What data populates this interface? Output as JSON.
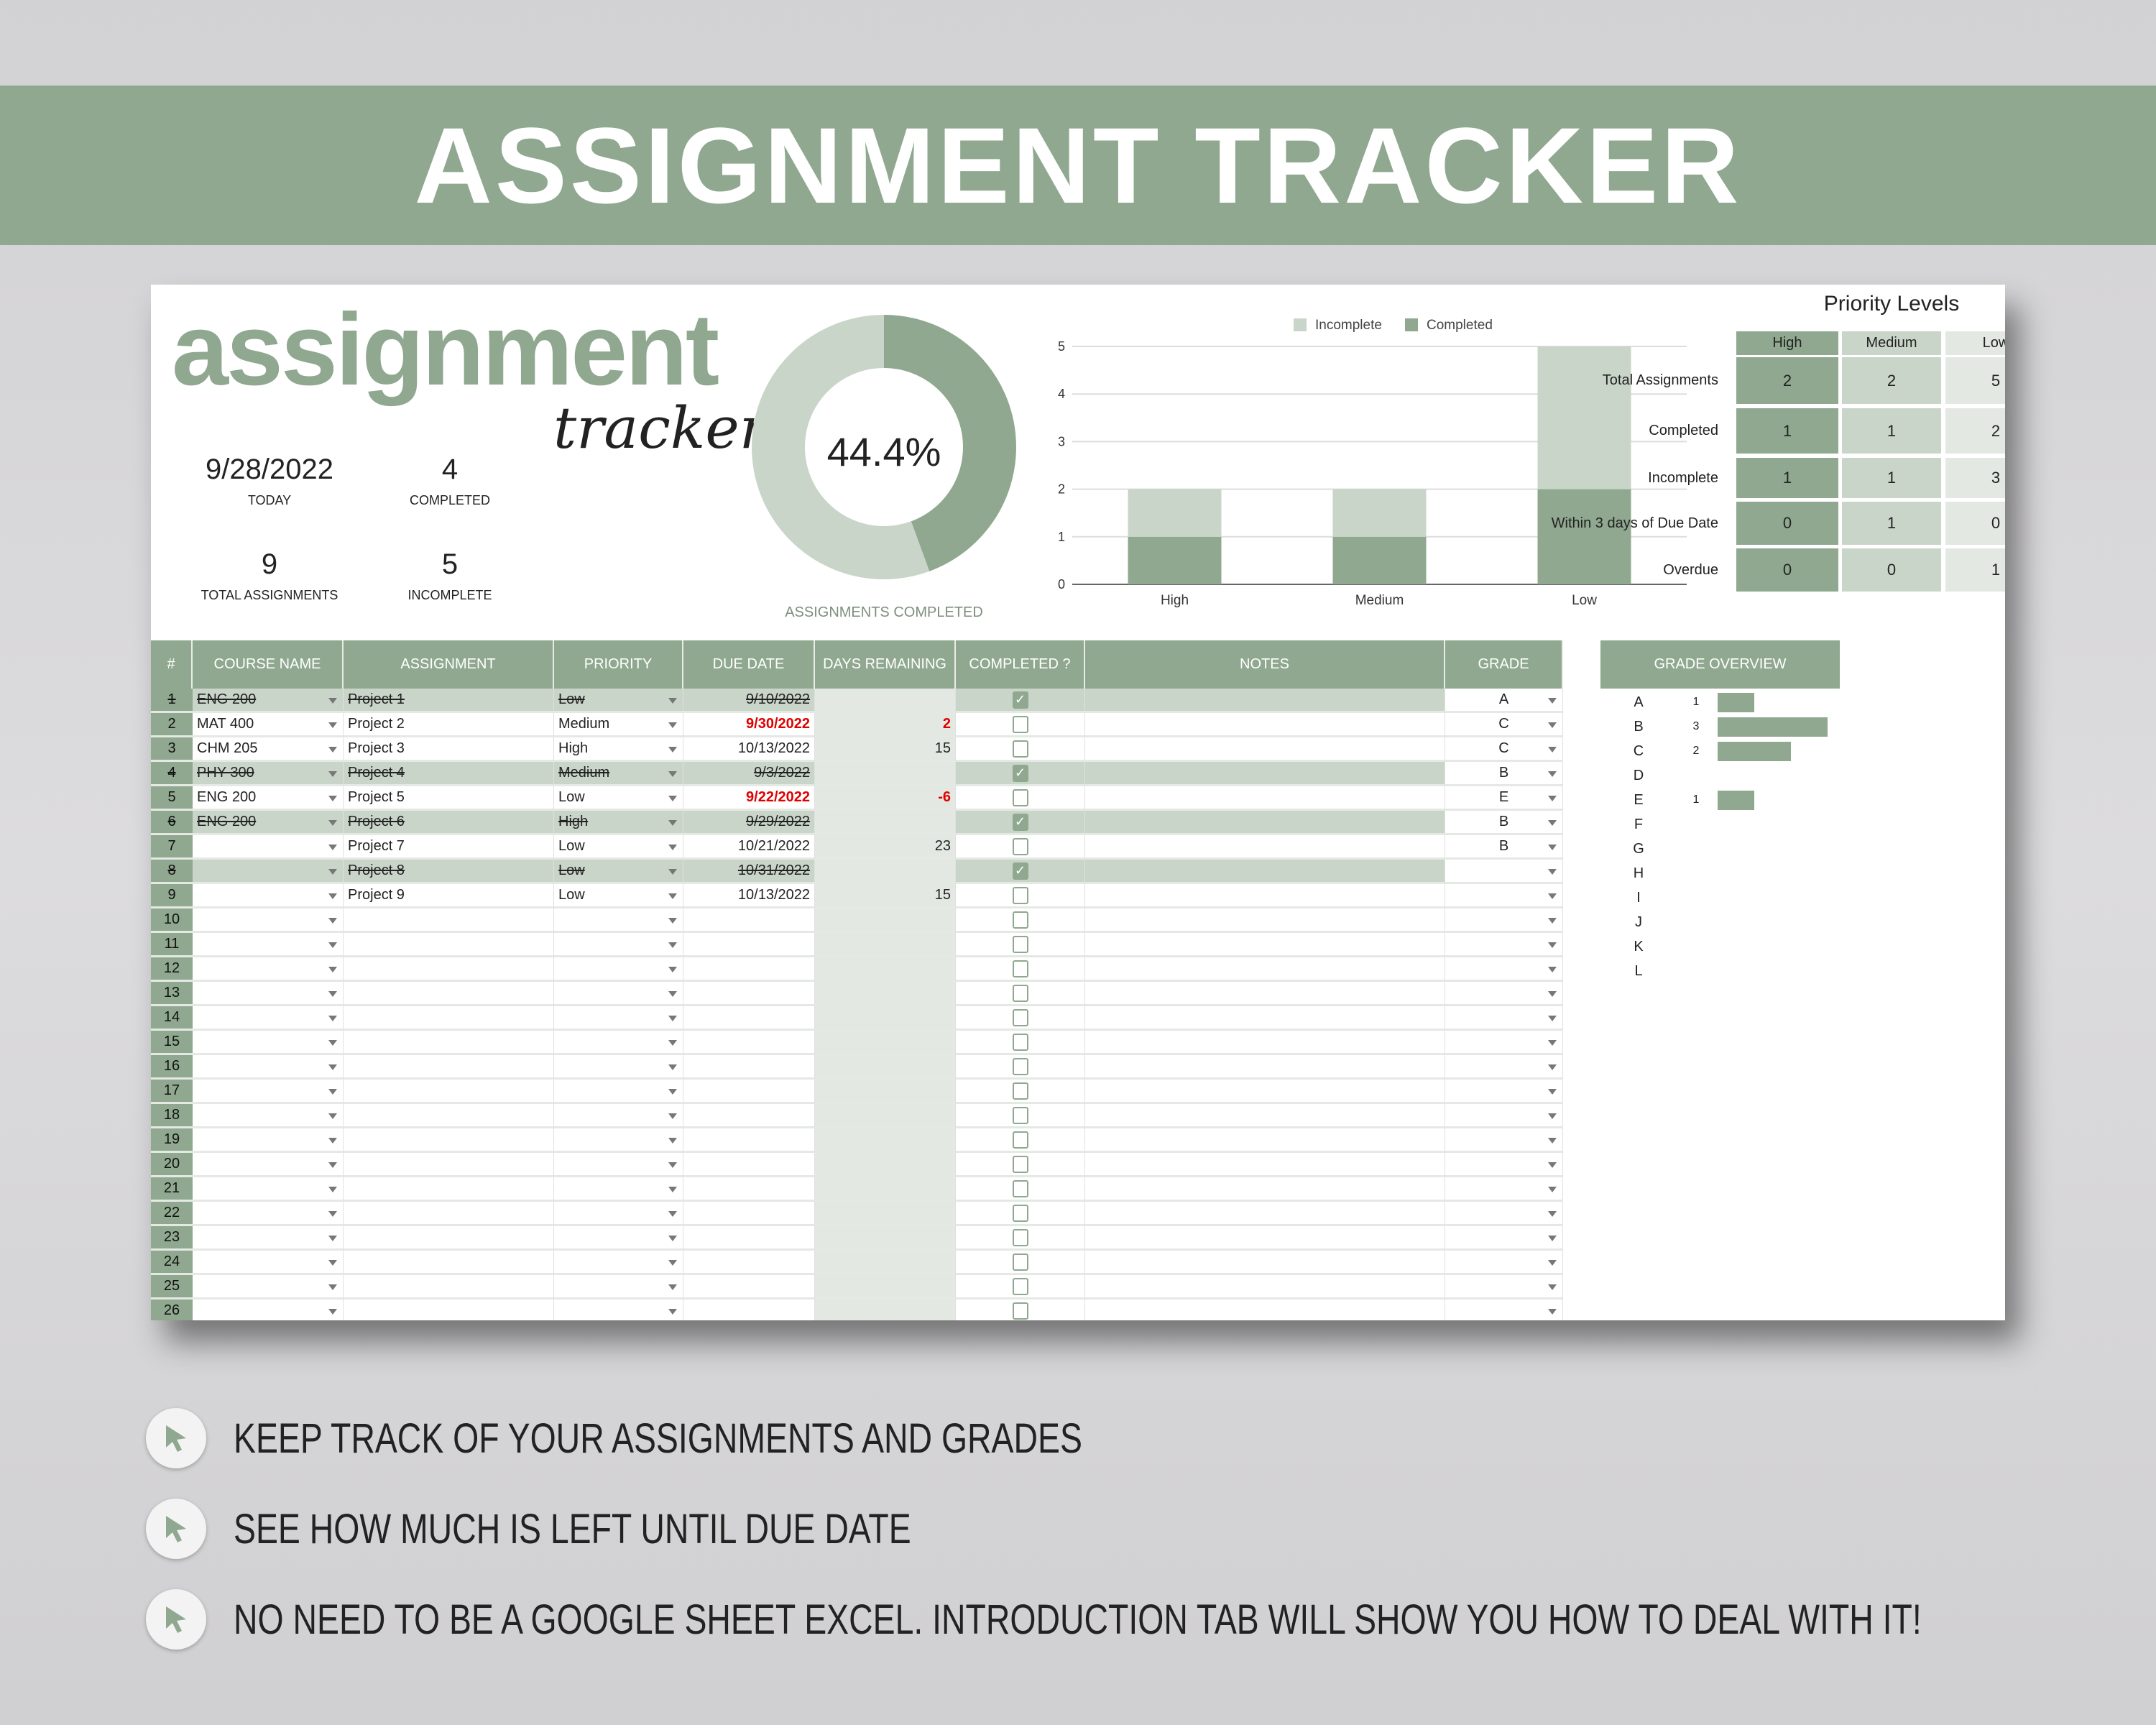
{
  "banner": {
    "title": "ASSIGNMENT TRACKER"
  },
  "logo": {
    "main": "assignment",
    "script": "tracker"
  },
  "stats": {
    "today": {
      "value": "9/28/2022",
      "label": "TODAY"
    },
    "completed": {
      "value": "4",
      "label": "COMPLETED"
    },
    "total": {
      "value": "9",
      "label": "TOTAL ASSIGNMENTS"
    },
    "incomplete": {
      "value": "5",
      "label": "INCOMPLETE"
    }
  },
  "colors": {
    "accent": "#8fa88f",
    "light": "#c9d5c9",
    "lighter": "#e3e8e3",
    "overdue": "#e00000"
  },
  "chart_data": [
    {
      "type": "pie",
      "variant": "donut",
      "center_label": "44.4%",
      "caption": "ASSIGNMENTS COMPLETED",
      "slices": [
        {
          "name": "Completed",
          "value": 44.4,
          "color": "#8fa88f"
        },
        {
          "name": "Incomplete",
          "value": 55.6,
          "color": "#c9d5c9"
        }
      ]
    },
    {
      "type": "bar",
      "stacked": true,
      "categories": [
        "High",
        "Medium",
        "Low"
      ],
      "ylim": [
        0,
        5
      ],
      "yticks": [
        "0",
        "1",
        "2",
        "3",
        "4",
        "5"
      ],
      "grid": true,
      "legend": "top",
      "series": [
        {
          "name": "Incomplete",
          "values": [
            1,
            1,
            3
          ],
          "color": "#c9d5c9"
        },
        {
          "name": "Completed",
          "values": [
            1,
            1,
            2
          ],
          "color": "#8fa88f"
        }
      ]
    }
  ],
  "priority": {
    "title": "Priority Levels",
    "columns": [
      "High",
      "Medium",
      "Low"
    ],
    "rows": [
      {
        "label": "Total Assignments",
        "values": [
          "2",
          "2",
          "5"
        ]
      },
      {
        "label": "Completed",
        "values": [
          "1",
          "1",
          "2"
        ]
      },
      {
        "label": "Incomplete",
        "values": [
          "1",
          "1",
          "3"
        ]
      },
      {
        "label": "Within 3 days of Due Date",
        "values": [
          "0",
          "1",
          "0"
        ]
      },
      {
        "label": "Overdue",
        "values": [
          "0",
          "0",
          "1"
        ]
      }
    ]
  },
  "table": {
    "headers": [
      "#",
      "COURSE NAME",
      "ASSIGNMENT",
      "PRIORITY",
      "DUE DATE",
      "DAYS REMAINING",
      "COMPLETED ?",
      "NOTES",
      "GRADE"
    ],
    "rows": [
      {
        "n": "1",
        "course": "ENG 200",
        "assignment": "Project 1",
        "priority": "Low",
        "due": "9/10/2022",
        "days": "",
        "completed": true,
        "notes": "",
        "grade": "A",
        "urgent": false
      },
      {
        "n": "2",
        "course": "MAT 400",
        "assignment": "Project 2",
        "priority": "Medium",
        "due": "9/30/2022",
        "days": "2",
        "completed": false,
        "notes": "",
        "grade": "C",
        "urgent": true
      },
      {
        "n": "3",
        "course": "CHM 205",
        "assignment": "Project 3",
        "priority": "High",
        "due": "10/13/2022",
        "days": "15",
        "completed": false,
        "notes": "",
        "grade": "C",
        "urgent": false
      },
      {
        "n": "4",
        "course": "PHY 300",
        "assignment": "Project 4",
        "priority": "Medium",
        "due": "9/3/2022",
        "days": "",
        "completed": true,
        "notes": "",
        "grade": "B",
        "urgent": false
      },
      {
        "n": "5",
        "course": "ENG 200",
        "assignment": "Project 5",
        "priority": "Low",
        "due": "9/22/2022",
        "days": "-6",
        "completed": false,
        "notes": "",
        "grade": "E",
        "urgent": true
      },
      {
        "n": "6",
        "course": "ENG 200",
        "assignment": "Project 6",
        "priority": "High",
        "due": "9/29/2022",
        "days": "",
        "completed": true,
        "notes": "",
        "grade": "B",
        "urgent": false
      },
      {
        "n": "7",
        "course": "",
        "assignment": "Project 7",
        "priority": "Low",
        "due": "10/21/2022",
        "days": "23",
        "completed": false,
        "notes": "",
        "grade": "B",
        "urgent": false
      },
      {
        "n": "8",
        "course": "",
        "assignment": "Project 8",
        "priority": "Low",
        "due": "10/31/2022",
        "days": "",
        "completed": true,
        "notes": "",
        "grade": "",
        "urgent": false
      },
      {
        "n": "9",
        "course": "",
        "assignment": "Project 9",
        "priority": "Low",
        "due": "10/13/2022",
        "days": "15",
        "completed": false,
        "notes": "",
        "grade": "",
        "urgent": false
      }
    ],
    "empty_row_numbers": [
      "10",
      "11",
      "12",
      "13",
      "14",
      "15",
      "16",
      "17",
      "18",
      "19",
      "20",
      "21",
      "22",
      "23",
      "24",
      "25",
      "26"
    ]
  },
  "grade_overview": {
    "title": "GRADE OVERVIEW",
    "rows": [
      {
        "grade": "A",
        "count": "1",
        "value": 1
      },
      {
        "grade": "B",
        "count": "3",
        "value": 3
      },
      {
        "grade": "C",
        "count": "2",
        "value": 2
      },
      {
        "grade": "D",
        "count": "",
        "value": 0
      },
      {
        "grade": "E",
        "count": "1",
        "value": 1
      },
      {
        "grade": "F",
        "count": "",
        "value": 0
      },
      {
        "grade": "G",
        "count": "",
        "value": 0
      },
      {
        "grade": "H",
        "count": "",
        "value": 0
      },
      {
        "grade": "I",
        "count": "",
        "value": 0
      },
      {
        "grade": "J",
        "count": "",
        "value": 0
      },
      {
        "grade": "K",
        "count": "",
        "value": 0
      },
      {
        "grade": "L",
        "count": "",
        "value": 0
      }
    ]
  },
  "features": [
    {
      "icon": "cursor-arrow-icon",
      "text": "KEEP TRACK OF YOUR ASSIGNMENTS AND GRADES"
    },
    {
      "icon": "cursor-arrow-icon",
      "text": "SEE HOW MUCH IS LEFT UNTIL DUE DATE"
    },
    {
      "icon": "cursor-arrow-icon",
      "text": "NO NEED TO BE A GOOGLE SHEET EXCEL. INTRODUCTION TAB WILL SHOW YOU HOW TO DEAL WITH IT!"
    }
  ]
}
